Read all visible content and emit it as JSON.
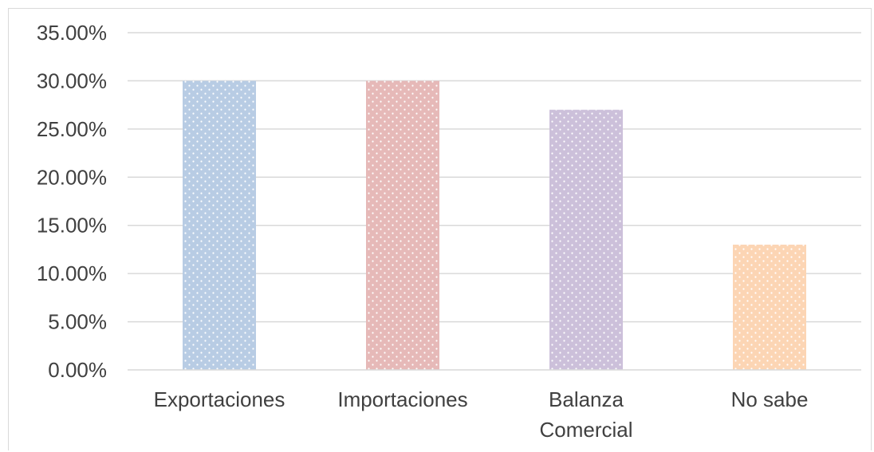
{
  "chart_data": {
    "type": "bar",
    "categories": [
      [
        "Exportaciones"
      ],
      [
        "Importaciones"
      ],
      [
        "Balanza",
        "Comercial"
      ],
      [
        "No sabe"
      ]
    ],
    "values": [
      30,
      30,
      27,
      13
    ],
    "value_format": "percent_2dp",
    "ylim": [
      0,
      35
    ],
    "ytick_step": 5,
    "yticks": [
      "0.00%",
      "5.00%",
      "10.00%",
      "15.00%",
      "20.00%",
      "25.00%",
      "30.00%",
      "35.00%"
    ],
    "colors": [
      "#b8cce4",
      "#e6b9b8",
      "#ccc0da",
      "#fcd5b4"
    ],
    "grid": true,
    "legend": "none",
    "title": "",
    "xlabel": "",
    "ylabel": ""
  }
}
